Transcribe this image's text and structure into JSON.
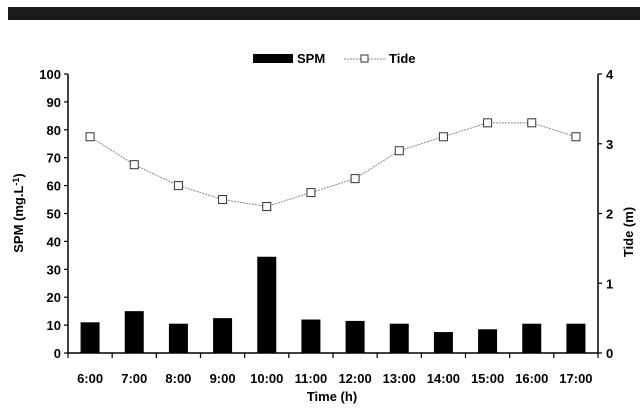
{
  "chart_data": {
    "type": "bar",
    "categories": [
      "6:00",
      "7:00",
      "8:00",
      "9:00",
      "10:00",
      "11:00",
      "12:00",
      "13:00",
      "14:00",
      "15:00",
      "16:00",
      "17:00"
    ],
    "series": [
      {
        "name": "SPM",
        "type": "bar",
        "axis": "left",
        "values": [
          11,
          15,
          10.5,
          12.5,
          34.5,
          12,
          11.5,
          10.5,
          7.5,
          8.5,
          10.5,
          10.5
        ]
      },
      {
        "name": "Tide",
        "type": "line",
        "axis": "right",
        "values": [
          3.1,
          2.7,
          2.4,
          2.2,
          2.1,
          2.3,
          2.5,
          2.9,
          3.1,
          3.3,
          3.3,
          3.1
        ]
      }
    ],
    "xlabel": "Time (h)",
    "ylabel": "SPM  (mg.L",
    "ylabel_sup": "-1",
    "ylabel_close": ")",
    "y2label": "Tide (m)",
    "ylim": [
      0,
      100
    ],
    "y2lim": [
      0,
      4
    ],
    "yticks": [
      "0",
      "10",
      "20",
      "30",
      "40",
      "50",
      "60",
      "70",
      "80",
      "90",
      "100"
    ],
    "y2ticks": [
      "0",
      "1",
      "2",
      "3",
      "4"
    ],
    "legend": "top-center",
    "grid": false,
    "colors": {
      "bar": "#000000",
      "line": "#888888",
      "marker_fill": "#ffffff",
      "marker_stroke": "#333333"
    }
  }
}
